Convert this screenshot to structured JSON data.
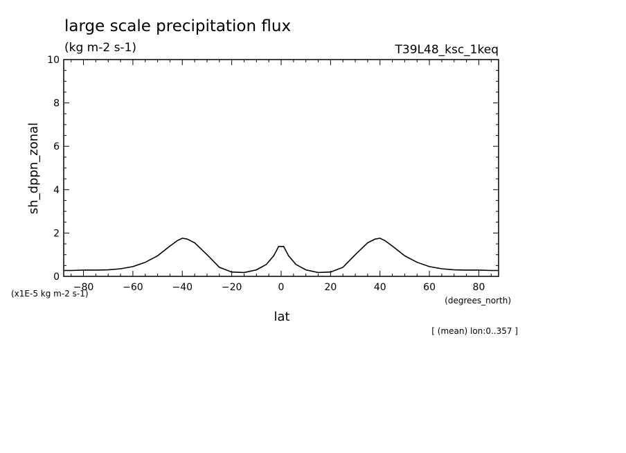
{
  "chart_data": {
    "type": "line",
    "title": "large scale precipitation flux",
    "units": "(kg m-2 s-1)",
    "run_label": "T39L48_ksc_1keq",
    "xlabel": "lat",
    "x_units": "(degrees_north)",
    "ylabel": "sh_dppn_zonal",
    "y_scale_note": "(x1E-5 kg m-2 s-1)",
    "footnote": "[ (mean) lon:0..357 ]",
    "xlim": [
      -88,
      88
    ],
    "ylim": [
      0,
      10
    ],
    "x_ticks": [
      -80,
      -60,
      -40,
      -20,
      0,
      20,
      40,
      60,
      80
    ],
    "y_ticks": [
      0,
      2,
      4,
      6,
      8,
      10
    ],
    "series": [
      {
        "name": "sh_dppn_zonal",
        "x": [
          -88,
          -85,
          -80,
          -75,
          -70,
          -65,
          -60,
          -55,
          -50,
          -45,
          -42,
          -40,
          -38,
          -35,
          -30,
          -25,
          -20,
          -15,
          -10,
          -6,
          -3,
          -1,
          1,
          3,
          6,
          10,
          15,
          20,
          25,
          30,
          35,
          38,
          40,
          42,
          45,
          50,
          55,
          60,
          65,
          70,
          75,
          80,
          85,
          88
        ],
        "values": [
          0.27,
          0.27,
          0.29,
          0.29,
          0.3,
          0.35,
          0.45,
          0.65,
          0.95,
          1.4,
          1.65,
          1.76,
          1.72,
          1.55,
          1.0,
          0.42,
          0.2,
          0.18,
          0.3,
          0.55,
          0.95,
          1.38,
          1.38,
          0.95,
          0.55,
          0.3,
          0.18,
          0.2,
          0.42,
          1.0,
          1.55,
          1.72,
          1.76,
          1.65,
          1.4,
          0.95,
          0.65,
          0.45,
          0.35,
          0.3,
          0.29,
          0.29,
          0.27,
          0.27
        ]
      }
    ]
  }
}
